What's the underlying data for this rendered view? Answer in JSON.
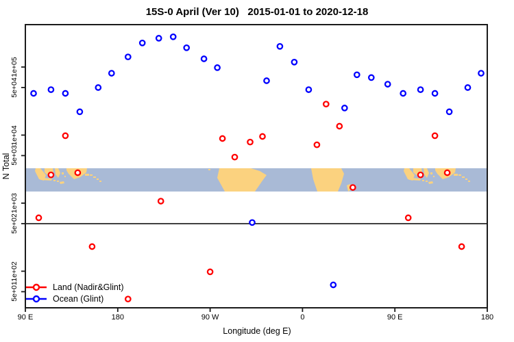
{
  "title": "15S-0 April (Ver 10)   2015-01-01 to 2020-12-18",
  "colors": {
    "land_series": "#FF0000",
    "ocean_series": "#0000FF",
    "map_ocean": "#A9BAD6",
    "map_land": "#FBD27F",
    "axis": "#1a1a1a",
    "reference_line": "#000000"
  },
  "legend": {
    "items": [
      {
        "label": "Land (Nadir&Glint)",
        "color": "#FF0000"
      },
      {
        "label": "Ocean (Glint)",
        "color": "#0000FF"
      }
    ]
  },
  "chart_data": {
    "type": "scatter",
    "title": "15S-0 April (Ver 10)   2015-01-01 to 2020-12-18",
    "xlabel": "Longitude (deg E)",
    "ylabel": "N Total",
    "x_axis": {
      "ticks": [
        "90 E",
        "180",
        "90 W",
        "0",
        "90 E",
        "180"
      ],
      "tick_lons": [
        90,
        180,
        270,
        360,
        450,
        540
      ],
      "range": [
        90,
        540
      ],
      "note": "longitude axis wraps eastward 90E-180-90W-0-90E-180; 90E-180 window repeated"
    },
    "y_axis": {
      "scale": "log10",
      "ticks": [
        "1e+05",
        "5e+04",
        "1e+04",
        "5e+03",
        "1e+03",
        "5e+02",
        "1e+02",
        "5e+01"
      ],
      "tick_values": [
        100000,
        50000,
        10000,
        5000,
        1000,
        500,
        100,
        50
      ],
      "range": [
        30,
        420000
      ]
    },
    "reference_line_y": 500,
    "grid": false,
    "legend_position": "bottom-left",
    "series": [
      {
        "name": "Land (Nadir&Glint)",
        "color": "#FF0000",
        "points": [
          [
            103,
            610
          ],
          [
            115,
            2600
          ],
          [
            129,
            9800
          ],
          [
            141,
            2800
          ],
          [
            155,
            230
          ],
          [
            190,
            39
          ],
          [
            222,
            1070
          ],
          [
            270,
            98
          ],
          [
            282,
            8900
          ],
          [
            294,
            4750
          ],
          [
            309,
            7900
          ],
          [
            321,
            9550
          ],
          [
            374,
            7200
          ],
          [
            383,
            28500
          ],
          [
            396,
            13500
          ],
          [
            409,
            1700
          ],
          [
            463,
            610
          ],
          [
            475,
            2600
          ],
          [
            489,
            9800
          ],
          [
            501,
            2800
          ],
          [
            515,
            230
          ]
        ]
      },
      {
        "name": "Ocean (Glint)",
        "color": "#0000FF",
        "points": [
          [
            98,
            41000
          ],
          [
            115,
            46500
          ],
          [
            129,
            41000
          ],
          [
            143,
            22000
          ],
          [
            161,
            50000
          ],
          [
            174,
            81000
          ],
          [
            190,
            141000
          ],
          [
            204,
            226000
          ],
          [
            220,
            265000
          ],
          [
            234,
            278000
          ],
          [
            247,
            192000
          ],
          [
            264,
            132000
          ],
          [
            277,
            98000
          ],
          [
            311,
            520
          ],
          [
            325,
            63000
          ],
          [
            338,
            201000
          ],
          [
            352,
            118000
          ],
          [
            366,
            46500
          ],
          [
            390,
            63
          ],
          [
            401,
            25000
          ],
          [
            413,
            77000
          ],
          [
            427,
            70000
          ],
          [
            443,
            56000
          ],
          [
            458,
            41000
          ],
          [
            475,
            46500
          ],
          [
            489,
            41000
          ],
          [
            503,
            22000
          ],
          [
            521,
            50000
          ],
          [
            534,
            81000
          ]
        ]
      }
    ]
  }
}
